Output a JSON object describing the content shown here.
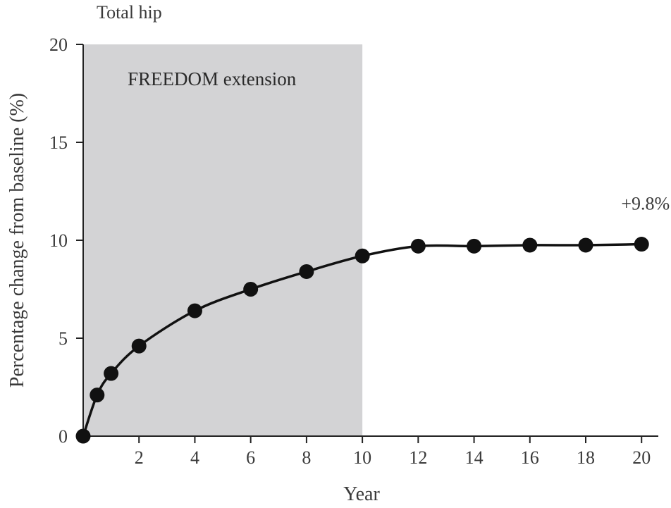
{
  "chart_data": {
    "type": "line",
    "title": "Total hip",
    "xlabel": "Year",
    "ylabel": "Percentage change from baseline (%)",
    "xlim": [
      0,
      20.6
    ],
    "ylim": [
      0,
      20
    ],
    "xticks": [
      2,
      4,
      6,
      8,
      10,
      12,
      14,
      16,
      18,
      20
    ],
    "yticks": [
      0,
      5,
      10,
      15,
      20
    ],
    "grid": false,
    "shaded_region": {
      "x_start": 0,
      "x_end": 10,
      "label": "FREEDOM extension",
      "color": "#d3d3d5"
    },
    "series": [
      {
        "x": [
          0,
          0.5,
          1,
          2,
          4,
          6,
          8,
          10,
          12,
          14,
          16,
          18,
          20
        ],
        "y": [
          0,
          2.1,
          3.2,
          4.6,
          6.4,
          7.5,
          8.4,
          9.2,
          9.7,
          9.7,
          9.75,
          9.75,
          9.8
        ],
        "color": "#111111"
      }
    ],
    "annotations": [
      {
        "text": "+9.8%",
        "x": 20,
        "y": 9.8
      }
    ]
  }
}
